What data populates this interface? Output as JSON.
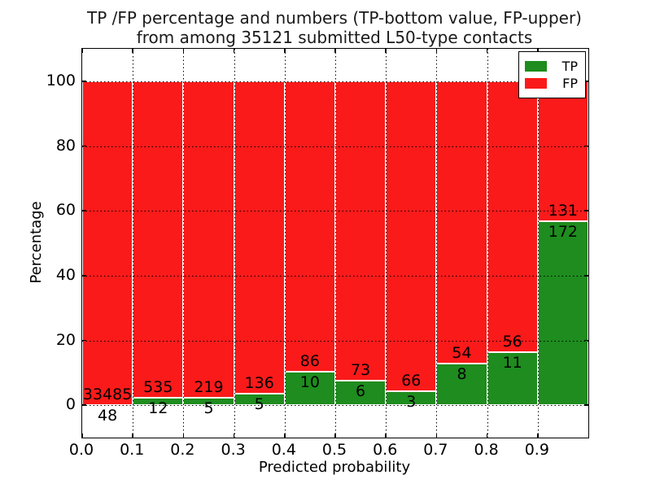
{
  "chart_data": {
    "type": "bar",
    "subtype": "stacked-percentage",
    "title_line1": "TP /FP percentage and numbers (TP-bottom value, FP-upper)",
    "title_line2": "from among 35121 submitted L50-type contacts",
    "xlabel": "Predicted probability",
    "ylabel": "Percentage",
    "xlim": [
      0.0,
      1.0
    ],
    "ylim": [
      -10,
      110
    ],
    "x_ticks": [
      0.0,
      0.1,
      0.2,
      0.3,
      0.4,
      0.5,
      0.6,
      0.7,
      0.8,
      0.9
    ],
    "x_tick_labels": [
      "0.0",
      "0.1",
      "0.2",
      "0.3",
      "0.4",
      "0.5",
      "0.6",
      "0.7",
      "0.8",
      "0.9"
    ],
    "y_ticks": [
      0,
      20,
      40,
      60,
      80,
      100
    ],
    "y_tick_labels": [
      "0",
      "20",
      "40",
      "60",
      "80",
      "100"
    ],
    "bin_edges": [
      0.0,
      0.1,
      0.2,
      0.3,
      0.4,
      0.5,
      0.6,
      0.7,
      0.8,
      0.9,
      1.0
    ],
    "series": [
      {
        "name": "TP",
        "color": "#1e8c1e",
        "counts": [
          48,
          12,
          5,
          5,
          10,
          6,
          3,
          8,
          11,
          172
        ]
      },
      {
        "name": "FP",
        "color": "#fa1a1a",
        "counts": [
          33485,
          535,
          219,
          136,
          86,
          73,
          66,
          54,
          56,
          131
        ]
      }
    ],
    "bars_stack_to": 100,
    "bar_edge_color": "#ffffff",
    "grid": {
      "style": "dotted",
      "color": "#000000",
      "axes": "both",
      "above_bars": true
    },
    "legend": {
      "position": "upper right",
      "items": [
        {
          "label": "TP",
          "color": "#1e8c1e"
        },
        {
          "label": "FP",
          "color": "#fa1a1a"
        }
      ]
    }
  }
}
